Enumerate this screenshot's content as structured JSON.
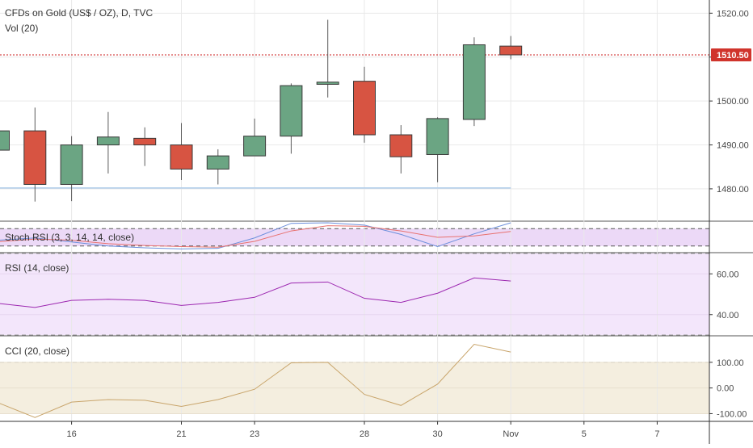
{
  "header": {
    "symbol_line": "CFDs on Gold (US$ / OZ), D, TVC",
    "volume_label": "Vol (20)"
  },
  "colors": {
    "up": "#6ba583",
    "down": "#d75442",
    "wick": "#5b5b5b",
    "price_line": "#cc2222",
    "price_label_bg": "#d0342c",
    "stoch_bg": "#ecd9f7",
    "rsi_bg": "#f3e6fb",
    "cci_bg": "#f4eedf",
    "stoch_k": "#6c8fdc",
    "stoch_d": "#e8716f",
    "rsi_line": "#9c27b0",
    "cci_line": "#c8a46a",
    "grid": "#e9e9e9",
    "axis_text": "#4a4a4a",
    "support_line": "#aeccea"
  },
  "chart_data": [
    {
      "type": "candlestick",
      "title": "CFDs on Gold (US$ / OZ), D, TVC",
      "ylim": [
        1473,
        1523
      ],
      "y_ticks": [
        "1520.00",
        "1510.00",
        "1500.00",
        "1490.00",
        "1480.00"
      ],
      "last_price": 1510.5,
      "last_price_label": "1510.50",
      "support_level": 1480.2,
      "candles": [
        {
          "date": "2019-10-14",
          "open": 1488.8,
          "high": 1493.2,
          "low": 1486.2,
          "close": 1493.2
        },
        {
          "date": "2019-10-15",
          "open": 1493.2,
          "high": 1498.5,
          "low": 1477.1,
          "close": 1481.0
        },
        {
          "date": "2019-10-16",
          "open": 1481.0,
          "high": 1492.0,
          "low": 1477.2,
          "close": 1490.0
        },
        {
          "date": "2019-10-17",
          "open": 1490.0,
          "high": 1497.5,
          "low": 1483.5,
          "close": 1491.8
        },
        {
          "date": "2019-10-18",
          "open": 1491.5,
          "high": 1494.0,
          "low": 1485.2,
          "close": 1490.0
        },
        {
          "date": "2019-10-21",
          "open": 1490.0,
          "high": 1495.0,
          "low": 1482.0,
          "close": 1484.5
        },
        {
          "date": "2019-10-22",
          "open": 1484.5,
          "high": 1489.0,
          "low": 1481.0,
          "close": 1487.5
        },
        {
          "date": "2019-10-23",
          "open": 1487.5,
          "high": 1496.0,
          "low": 1487.5,
          "close": 1492.0
        },
        {
          "date": "2019-10-24",
          "open": 1492.0,
          "high": 1504.0,
          "low": 1488.0,
          "close": 1503.5
        },
        {
          "date": "2019-10-25",
          "open": 1503.8,
          "high": 1518.5,
          "low": 1500.8,
          "close": 1504.3
        },
        {
          "date": "2019-10-28",
          "open": 1504.5,
          "high": 1507.8,
          "low": 1490.5,
          "close": 1492.3
        },
        {
          "date": "2019-10-29",
          "open": 1492.3,
          "high": 1494.5,
          "low": 1483.5,
          "close": 1487.3
        },
        {
          "date": "2019-10-30",
          "open": 1487.8,
          "high": 1496.3,
          "low": 1481.5,
          "close": 1496.0
        },
        {
          "date": "2019-10-31",
          "open": 1495.8,
          "high": 1514.5,
          "low": 1494.3,
          "close": 1512.8
        },
        {
          "date": "2019-11-01",
          "open": 1512.5,
          "high": 1514.8,
          "low": 1509.5,
          "close": 1510.5
        }
      ],
      "x_ticks": [
        "16",
        "21",
        "23",
        "28",
        "30",
        "Nov",
        "5",
        "7"
      ],
      "x_tick_dates": [
        "2019-10-16",
        "2019-10-21",
        "2019-10-23",
        "2019-10-28",
        "2019-10-30",
        "2019-11-01",
        "2019-11-05",
        "2019-11-07"
      ]
    },
    {
      "type": "line",
      "title": "Stoch RSI (3, 3, 14, 14, close)",
      "ylim": [
        0,
        100
      ],
      "bands": [
        20,
        80
      ],
      "series": [
        {
          "name": "K",
          "values": [
            40,
            48,
            34,
            20,
            14,
            10,
            12,
            48,
            98,
            100,
            92,
            60,
            18,
            62,
            100
          ]
        },
        {
          "name": "D",
          "values": [
            35,
            44,
            40,
            28,
            22,
            18,
            16,
            36,
            72,
            90,
            88,
            72,
            50,
            55,
            70
          ]
        }
      ]
    },
    {
      "type": "line",
      "title": "RSI (14, close)",
      "ylim": [
        30,
        70
      ],
      "y_ticks": [
        "60.00",
        "40.00"
      ],
      "bands": [
        30,
        70
      ],
      "series": [
        {
          "name": "RSI",
          "values": [
            45.5,
            43.5,
            47.0,
            47.5,
            47.0,
            44.5,
            46.0,
            48.5,
            55.5,
            56.0,
            48.0,
            46.0,
            50.5,
            58.0,
            56.5
          ]
        }
      ]
    },
    {
      "type": "line",
      "title": "CCI (20, close)",
      "ylim": [
        -130,
        200
      ],
      "y_ticks": [
        "100.00",
        "0.00",
        "-100.00"
      ],
      "bands": [
        -100,
        100
      ],
      "series": [
        {
          "name": "CCI",
          "values": [
            -58,
            -115,
            -55,
            -45,
            -48,
            -72,
            -45,
            -5,
            98,
            100,
            -25,
            -68,
            15,
            170,
            140
          ]
        }
      ]
    }
  ]
}
